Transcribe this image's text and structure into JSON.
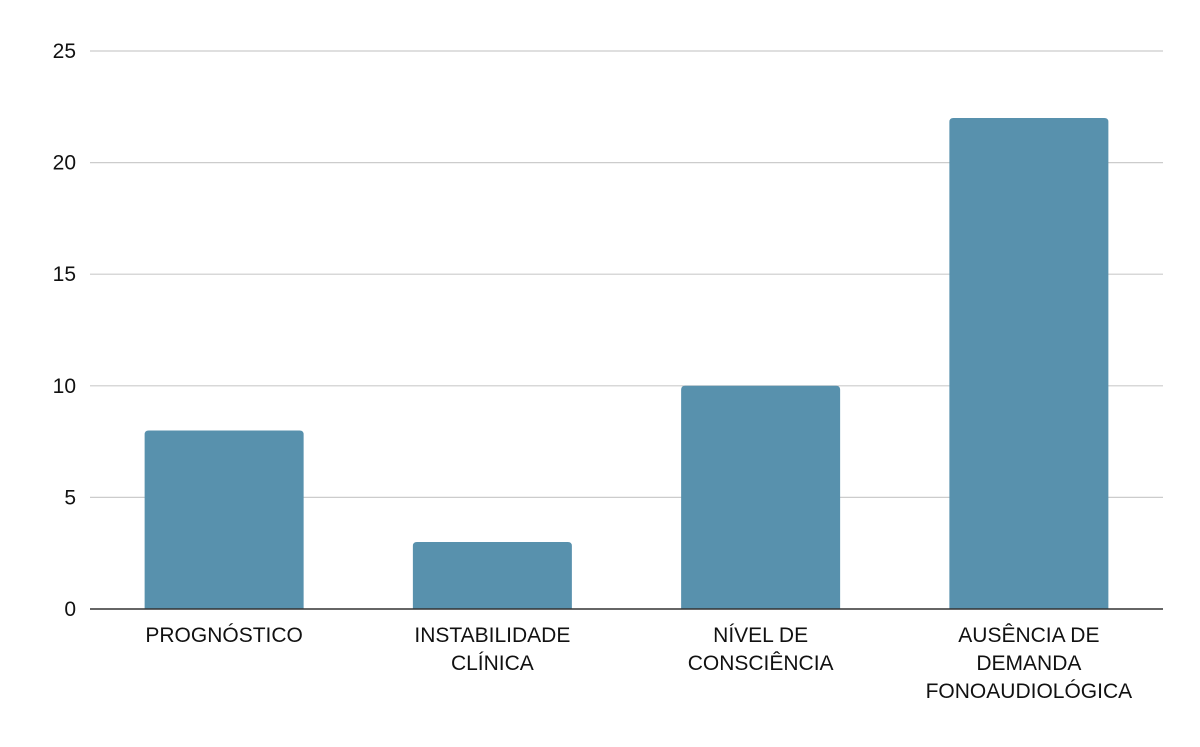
{
  "chart_data": {
    "type": "bar",
    "title": "",
    "xlabel": "",
    "ylabel": "",
    "categories": [
      [
        "PROGNÓSTICO"
      ],
      [
        "INSTABILIDADE",
        "CLÍNICA"
      ],
      [
        "NÍVEL DE",
        "CONSCIÊNCIA"
      ],
      [
        "AUSÊNCIA DE",
        "DEMANDA",
        "FONOAUDIOLÓGICA"
      ]
    ],
    "values": [
      8,
      3,
      10,
      22
    ],
    "ylim": [
      0,
      25
    ],
    "yticks": [
      "0",
      "5",
      "10",
      "15",
      "20",
      "25"
    ],
    "grid": true,
    "legend": "none",
    "colors": {
      "bar": "#5891ad",
      "grid": "#cccccc",
      "axis": "#333333"
    }
  }
}
